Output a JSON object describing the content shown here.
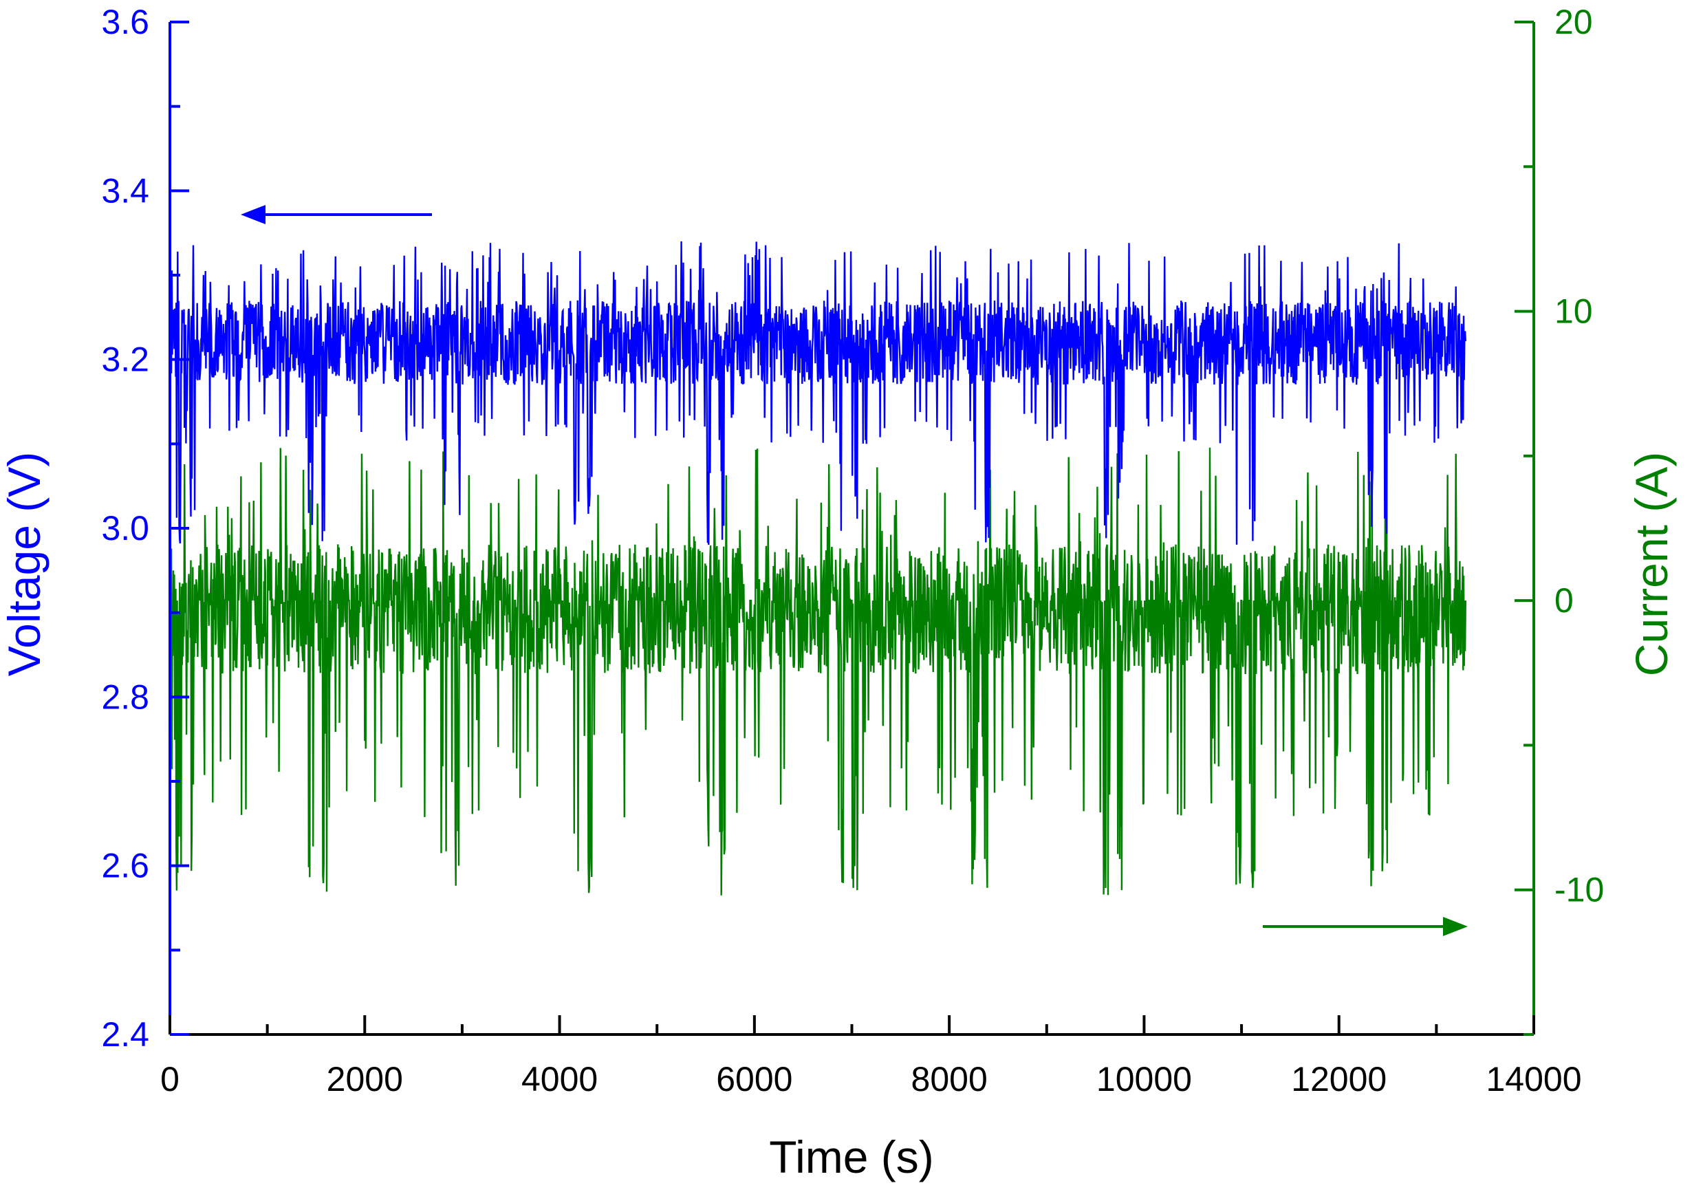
{
  "chart_data": {
    "type": "line",
    "xlabel": "Time (s)",
    "ylabel_left": "Voltage (V)",
    "ylabel_right": "Current (A)",
    "xlim": [
      0,
      14000
    ],
    "ylim_left": [
      2.4,
      3.6
    ],
    "ylim_right": [
      -15,
      20
    ],
    "xticks": [
      "0",
      "2000",
      "4000",
      "6000",
      "8000",
      "10000",
      "12000",
      "14000"
    ],
    "yticks_left": [
      "2.4",
      "2.6",
      "2.8",
      "3.0",
      "3.2",
      "3.4",
      "3.6"
    ],
    "yticks_right": [
      "-10",
      "0",
      "10",
      "20"
    ],
    "grid": false,
    "legend": "none",
    "annotations": [
      {
        "type": "arrow",
        "direction": "left",
        "points_to": "left axis",
        "color": "#0000ff"
      },
      {
        "type": "arrow",
        "direction": "right",
        "points_to": "right axis",
        "color": "#007f00"
      }
    ],
    "series": [
      {
        "axis": "left",
        "color": "#0000ff",
        "cycle_period_s": 1360,
        "t_end_s": 13300,
        "baseline": 3.22,
        "range": [
          2.98,
          3.34
        ]
      },
      {
        "axis": "right",
        "color": "#007f00",
        "cycle_period_s": 1360,
        "t_end_s": 13300,
        "baseline": -0.3,
        "range": [
          -10.2,
          5.5
        ]
      }
    ]
  },
  "colors": {
    "voltage": "#0000ff",
    "current": "#007f00",
    "axis": "#000000"
  }
}
